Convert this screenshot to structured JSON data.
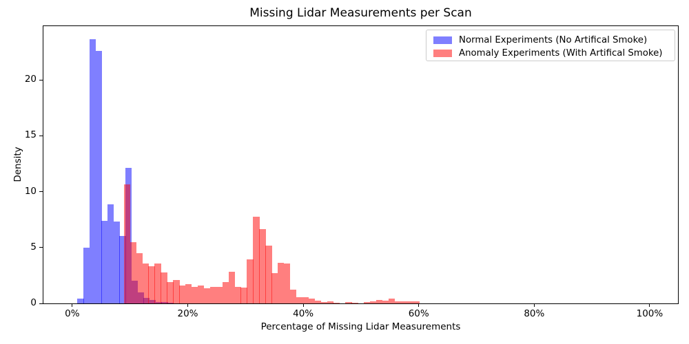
{
  "title": "Missing Lidar Measurements per Scan",
  "x_axis_label": "Percentage of Missing Lidar Measurements",
  "y_axis_label": "Density",
  "legend": {
    "items": [
      {
        "label": "Normal Experiments (No Artifical Smoke)",
        "color": "rgba(0,0,255,0.5)"
      },
      {
        "label": "Anomaly Experiments (With Artifical Smoke)",
        "color": "rgba(255,0,0,0.5)"
      }
    ]
  },
  "colors": {
    "normal_fill": "rgba(0,0,255,0.5)",
    "anomaly_fill": "rgba(255,0,0,0.5)",
    "overlap_observed": "#bf3f80",
    "axis": "#000000",
    "legend_border": "#cccccc",
    "background": "#ffffff"
  },
  "chart_data": {
    "type": "bar",
    "subtype": "overlapping-density-histograms",
    "title": "Missing Lidar Measurements per Scan",
    "xlabel": "Percentage of Missing Lidar Measurements",
    "ylabel": "Density",
    "xlim_pct": [
      -5,
      104.9
    ],
    "ylim": [
      0,
      24.8
    ],
    "grid": false,
    "legend_position": "upper right",
    "x_ticks": [
      {
        "value": 0,
        "label": "0%"
      },
      {
        "value": 20,
        "label": "20%"
      },
      {
        "value": 40,
        "label": "40%"
      },
      {
        "value": 60,
        "label": "60%"
      },
      {
        "value": 80,
        "label": "80%"
      },
      {
        "value": 100,
        "label": "100%"
      }
    ],
    "y_ticks": [
      {
        "value": 0,
        "label": "0"
      },
      {
        "value": 5,
        "label": "5"
      },
      {
        "value": 10,
        "label": "10"
      },
      {
        "value": 15,
        "label": "15"
      },
      {
        "value": 20,
        "label": "20"
      }
    ],
    "series": [
      {
        "name": "Normal Experiments (No Artifical Smoke)",
        "color": "rgba(0,0,255,0.5)",
        "bin_start_pct": 0.9,
        "bin_width_pct": 1.04,
        "densities": [
          0.45,
          5.0,
          23.65,
          22.6,
          7.4,
          8.85,
          7.3,
          6.05,
          12.1,
          2.05,
          1.0,
          0.5,
          0.3,
          0.15,
          0.1,
          0.05
        ]
      },
      {
        "name": "Anomaly Experiments (With Artifical Smoke)",
        "color": "rgba(255,0,0,0.5)",
        "bin_start_pct": 8.93,
        "bin_width_pct": 1.066,
        "densities": [
          10.67,
          5.5,
          4.47,
          3.55,
          3.3,
          3.55,
          2.77,
          1.93,
          2.11,
          1.6,
          1.7,
          1.5,
          1.6,
          1.35,
          1.45,
          1.5,
          1.91,
          2.85,
          1.5,
          1.4,
          3.96,
          7.75,
          6.63,
          5.2,
          2.73,
          3.65,
          3.55,
          1.25,
          0.57,
          0.53,
          0.41,
          0.25,
          0.1,
          0.16,
          0.05,
          0,
          0.1,
          0.05,
          0,
          0.1,
          0.18,
          0.33,
          0.23,
          0.45,
          0.16,
          0.16,
          0.16,
          0.16
        ]
      }
    ]
  }
}
